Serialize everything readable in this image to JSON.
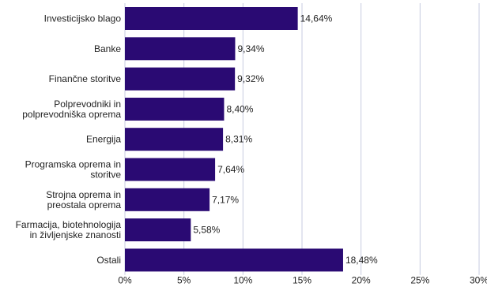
{
  "chart_data": {
    "type": "bar",
    "orientation": "horizontal",
    "categories": [
      [
        "Investicijsko blago"
      ],
      [
        "Banke"
      ],
      [
        "Finančne storitve"
      ],
      [
        "Polprevodniki in",
        "polprevodniška oprema"
      ],
      [
        "Energija"
      ],
      [
        "Programska oprema in",
        "storitve"
      ],
      [
        "Strojna oprema in",
        "preostala oprema"
      ],
      [
        "Farmacija, biotehnologija",
        "in življenjske znanosti"
      ],
      [
        "Ostali"
      ]
    ],
    "values": [
      14.64,
      9.34,
      9.32,
      8.4,
      8.31,
      7.64,
      7.17,
      5.58,
      18.48
    ],
    "value_labels": [
      "14,64%",
      "9,34%",
      "9,32%",
      "8,40%",
      "8,31%",
      "7,64%",
      "7,17%",
      "5,58%",
      "18,48%"
    ],
    "xlim": [
      0,
      30
    ],
    "x_ticks": [
      0,
      5,
      10,
      15,
      20,
      25,
      30
    ],
    "x_tick_labels": [
      "0%",
      "5%",
      "10%",
      "15%",
      "20%",
      "25%",
      "30%"
    ],
    "title": "",
    "xlabel": "",
    "ylabel": "",
    "grid": true,
    "legend": "none",
    "colors": {
      "bar": "#2a0a73",
      "grid": "#c7cbe0",
      "text": "#222222"
    }
  }
}
